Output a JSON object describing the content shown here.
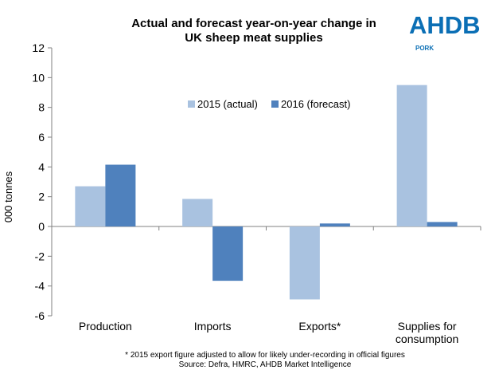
{
  "logo": {
    "name": "AHDB",
    "sub": "PORK",
    "color": "#0b6fb5"
  },
  "chart_data": {
    "type": "bar",
    "title_line1": "Actual and forecast year-on-year change in",
    "title_line2": "UK sheep meat supplies",
    "ylabel": "000 tonnes",
    "ylim": [
      -6,
      12
    ],
    "yticks": [
      12,
      10,
      8,
      6,
      4,
      2,
      0,
      -2,
      -4,
      -6
    ],
    "categories": [
      "Production",
      "Imports",
      "Exports*",
      "Supplies for consumption"
    ],
    "category_lines": [
      [
        "Production"
      ],
      [
        "Imports"
      ],
      [
        "Exports*"
      ],
      [
        "Supplies for",
        "consumption"
      ]
    ],
    "series": [
      {
        "name": "2015 (actual)",
        "color": "#a9c2e0",
        "values": [
          2.7,
          1.85,
          -4.9,
          9.5
        ]
      },
      {
        "name": "2016 (forecast)",
        "color": "#4f81bd",
        "values": [
          4.15,
          -3.65,
          0.2,
          0.3
        ]
      }
    ],
    "legend_position": "top-center",
    "grid": false
  },
  "footnote": "* 2015 export figure adjusted to allow for likely under-recording in official figures",
  "source": "Source: Defra, HMRC, AHDB Market Intelligence"
}
